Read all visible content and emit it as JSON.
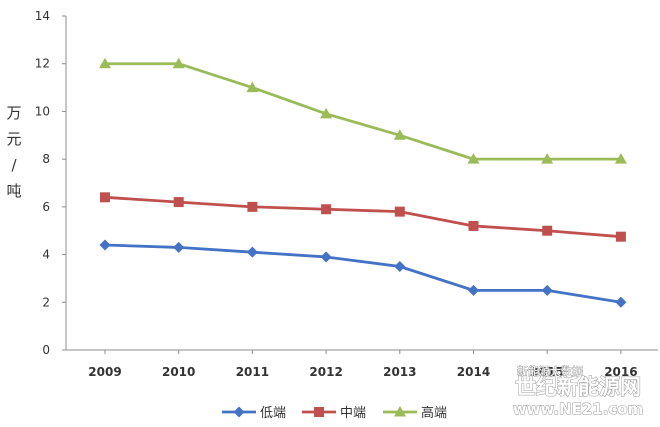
{
  "chart_data": {
    "type": "line",
    "title": "",
    "xlabel": "",
    "ylabel": "万元/吨",
    "categories": [
      "2009",
      "2010",
      "2011",
      "2012",
      "2013",
      "2014",
      "2015",
      "2016"
    ],
    "y_ticks": [
      "0",
      "2",
      "4",
      "6",
      "8",
      "10",
      "12",
      "14"
    ],
    "ylim": [
      0,
      14
    ],
    "grid": false,
    "legend_position": "bottom",
    "series": [
      {
        "name": "低端",
        "color": "#4472c4",
        "marker": "diamond",
        "values": [
          4.4,
          4.3,
          4.1,
          3.9,
          3.5,
          2.5,
          2.5,
          2.0
        ]
      },
      {
        "name": "中端",
        "color": "#c0504d",
        "marker": "square",
        "values": [
          6.4,
          6.2,
          6.0,
          5.9,
          5.8,
          5.2,
          5.0,
          4.75
        ]
      },
      {
        "name": "高端",
        "color": "#9bbb59",
        "marker": "triangle",
        "values": [
          12.0,
          12.0,
          11.0,
          9.9,
          9.0,
          8.0,
          8.0,
          8.0
        ]
      }
    ]
  },
  "watermark": {
    "site_name": "世纪新能源网",
    "url": "www.NE21.com",
    "source_text": "新能源大数据"
  }
}
